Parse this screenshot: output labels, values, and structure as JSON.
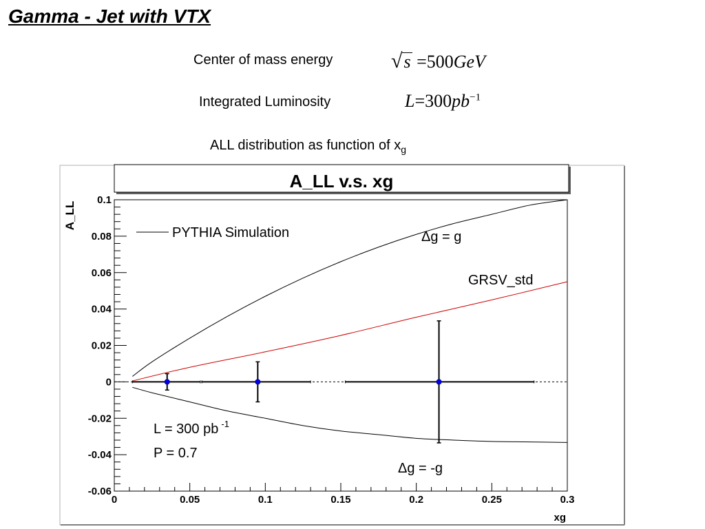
{
  "slide": {
    "title": "Gamma - Jet with VTX",
    "energy_label": "Center of mass energy",
    "energy_formula": {
      "radicand": "s",
      "equals": "=",
      "value": "500",
      "unit": "GeV"
    },
    "lumi_label": "Integrated Luminosity",
    "lumi_formula": {
      "symbol": "L",
      "equals": "=",
      "value": "300",
      "unit": "pb",
      "exponent": "−1"
    },
    "subtitle_main": "ALL distribution as function of x",
    "subtitle_sub": "g"
  },
  "chart_data": {
    "type": "line",
    "title": "A_LL v.s. xg",
    "xlabel": "xg",
    "ylabel": "A_LL",
    "xlim": [
      0,
      0.3
    ],
    "ylim": [
      -0.06,
      0.1
    ],
    "x_ticks": [
      "0",
      "0.05",
      "0.1",
      "0.15",
      "0.2",
      "0.25",
      "0.3"
    ],
    "y_ticks": [
      "-0.06",
      "-0.04",
      "-0.02",
      "0",
      "0.02",
      "0.04",
      "0.06",
      "0.08",
      "0.1"
    ],
    "legend": {
      "entry": "PYTHIA Simulation",
      "placement": "top-left"
    },
    "series": [
      {
        "name": "Δg = g",
        "color": "#000000",
        "x": [
          0.012,
          0.025,
          0.05,
          0.075,
          0.1,
          0.125,
          0.15,
          0.175,
          0.2,
          0.225,
          0.25,
          0.275,
          0.3
        ],
        "y": [
          0.003,
          0.011,
          0.024,
          0.036,
          0.047,
          0.057,
          0.066,
          0.074,
          0.081,
          0.087,
          0.092,
          0.097,
          0.1
        ]
      },
      {
        "name": "GRSV_std",
        "color": "#cc0000",
        "x": [
          0.012,
          0.05,
          0.1,
          0.15,
          0.2,
          0.25,
          0.3
        ],
        "y": [
          0.0005,
          0.008,
          0.0165,
          0.0255,
          0.0355,
          0.045,
          0.055
        ]
      },
      {
        "name": "Δg = -g",
        "color": "#000000",
        "x": [
          0.012,
          0.025,
          0.05,
          0.075,
          0.1,
          0.125,
          0.15,
          0.175,
          0.2,
          0.225,
          0.25,
          0.275,
          0.3
        ],
        "y": [
          -0.003,
          -0.006,
          -0.011,
          -0.016,
          -0.02,
          -0.024,
          -0.027,
          -0.029,
          -0.031,
          -0.032,
          -0.0327,
          -0.033,
          -0.0333
        ]
      }
    ],
    "points": [
      {
        "x": 0.035,
        "y": 0,
        "xerr_low": 0.023,
        "xerr_high": 0.022,
        "yerr": 0.0045
      },
      {
        "x": 0.095,
        "y": 0,
        "xerr_low": 0.037,
        "xerr_high": 0.035,
        "yerr": 0.011
      },
      {
        "x": 0.215,
        "y": 0,
        "xerr_low": 0.062,
        "xerr_high": 0.063,
        "yerr": 0.0335
      }
    ],
    "zero_line": {
      "y": 0,
      "style": "dashed"
    },
    "annotations": [
      {
        "id": "dg-pos",
        "text": "Δg = g"
      },
      {
        "id": "grsv",
        "text": "GRSV_std"
      },
      {
        "id": "dg-neg",
        "text": "Δg = -g"
      },
      {
        "id": "p-value",
        "text": "P = 0.7"
      }
    ],
    "lumi_annotation": {
      "text": "L = 300 pb",
      "superscript": "-1"
    }
  }
}
